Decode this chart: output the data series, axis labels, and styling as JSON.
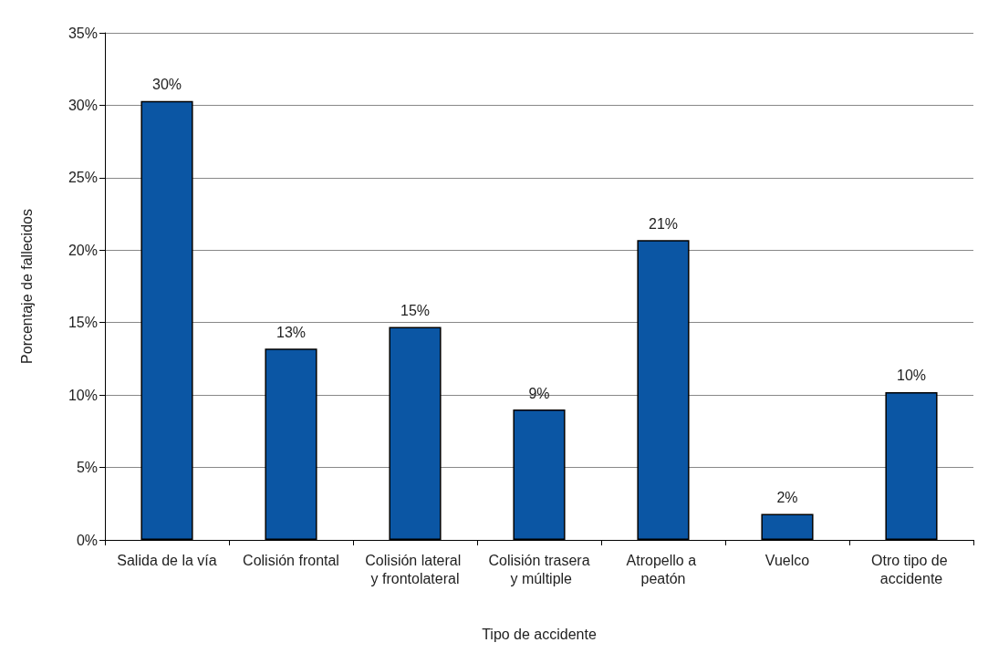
{
  "chart_data": {
    "type": "bar",
    "xlabel": "Tipo de accidente",
    "ylabel": "Porcentaje de fallecidos",
    "categories": [
      "Salida de la vía",
      "Colisión frontal",
      "Colisión lateral y frontolateral",
      "Colisión trasera y múltiple",
      "Atropello a peatón",
      "Vuelco",
      "Otro tipo de accidente"
    ],
    "values": [
      30.3,
      13.2,
      14.7,
      9.0,
      20.7,
      1.8,
      10.2
    ],
    "value_labels": [
      "30%",
      "13%",
      "15%",
      "9%",
      "21%",
      "2%",
      "10%"
    ],
    "color": "#0b56a4",
    "ylim": [
      0,
      35
    ],
    "yticks": [
      {
        "value": 0,
        "label": "0%"
      },
      {
        "value": 5,
        "label": "5%"
      },
      {
        "value": 10,
        "label": "10%"
      },
      {
        "value": 15,
        "label": "15%"
      },
      {
        "value": 20,
        "label": "20%"
      },
      {
        "value": 25,
        "label": "25%"
      },
      {
        "value": 30,
        "label": "30%"
      },
      {
        "value": 35,
        "label": "35%"
      }
    ],
    "grid": "y"
  }
}
